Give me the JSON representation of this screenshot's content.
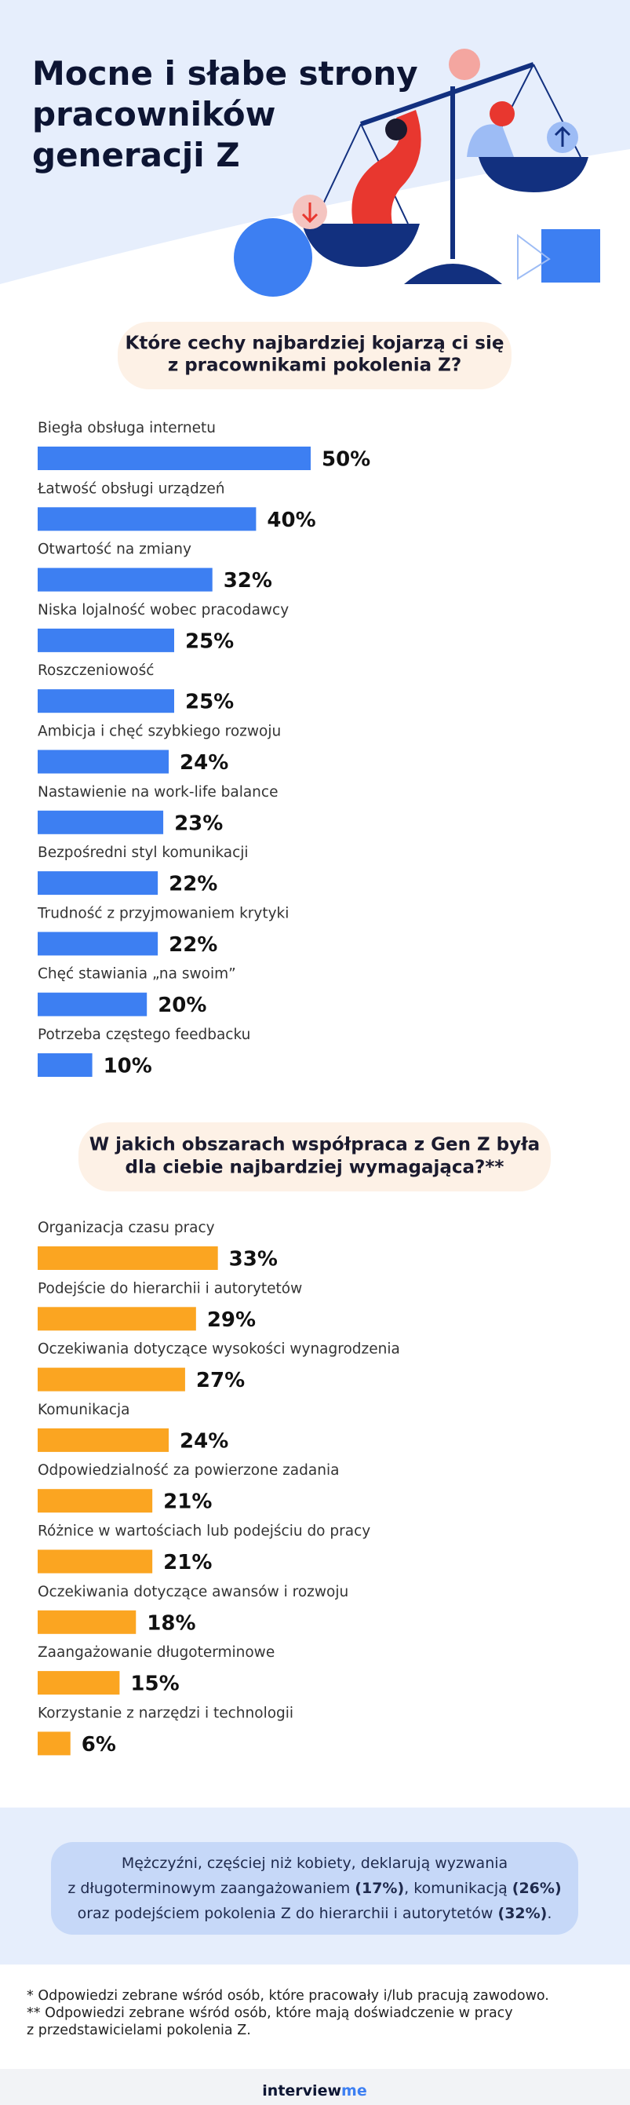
{
  "header": {
    "title": [
      "Mocne i słabe strony",
      "pracowników",
      "generacji Z"
    ]
  },
  "chart_data": [
    {
      "type": "bar",
      "orientation": "horizontal",
      "title": [
        "Które cechy najbardziej kojarzą ci się",
        "z pracownikami pokolenia Z?"
      ],
      "categories": [
        "Biegła obsługa internetu",
        "Łatwość obsługi urządzeń",
        "Otwartość na zmiany",
        "Niska lojalność wobec pracodawcy",
        "Roszczeniowość",
        "Ambicja i chęć szybkiego rozwoju",
        "Nastawienie na work-life balance",
        "Bezpośredni styl komunikacji",
        "Trudność z przyjmowaniem krytyki",
        "Chęć stawiania „na swoim”",
        "Potrzeba częstego feedbacku"
      ],
      "values": [
        50,
        40,
        32,
        25,
        25,
        24,
        23,
        22,
        22,
        20,
        10
      ],
      "value_labels": [
        "50%",
        "40%",
        "32%",
        "25%",
        "25%",
        "24%",
        "23%",
        "22%",
        "22%",
        "20%",
        "10%"
      ],
      "color": "#3d7ff2",
      "xlim": [
        0,
        100
      ]
    },
    {
      "type": "bar",
      "orientation": "horizontal",
      "title": [
        "W jakich obszarach współpraca z Gen Z była",
        "dla ciebie najbardziej wymagająca?**"
      ],
      "categories": [
        "Organizacja czasu pracy",
        "Podejście do hierarchii i autorytetów",
        "Oczekiwania dotyczące wysokości wynagrodzenia",
        "Komunikacja",
        "Odpowiedzialność za powierzone zadania",
        "Różnice w wartościach lub podejściu do pracy",
        "Oczekiwania dotyczące awansów i rozwoju",
        "Zaangażowanie długoterminowe",
        "Korzystanie z narzędzi i technologii"
      ],
      "values": [
        33,
        29,
        27,
        24,
        21,
        21,
        18,
        15,
        6
      ],
      "value_labels": [
        "33%",
        "29%",
        "27%",
        "24%",
        "21%",
        "21%",
        "18%",
        "15%",
        "6%"
      ],
      "color": "#fba521",
      "xlim": [
        0,
        100
      ]
    }
  ],
  "note": {
    "lines": [
      [
        "Mężczyźni, częściej niż kobiety, deklarują wyzwania"
      ],
      [
        "z długoterminowym zaangażowaniem ",
        "(17%)",
        ", komunikacją ",
        "(26%)"
      ],
      [
        "oraz podejściem pokolenia Z do hierarchii i autorytetów ",
        "(32%)",
        "."
      ]
    ]
  },
  "footnotes": [
    "* Odpowiedzi zebrane wśród osób, które pracowały i/lub pracują zawodowo.",
    "** Odpowiedzi zebrane wśród osób, które mają doświadczenie w pracy",
    "z przedstawicielami pokolenia Z."
  ],
  "brand": [
    "interview",
    "me"
  ]
}
